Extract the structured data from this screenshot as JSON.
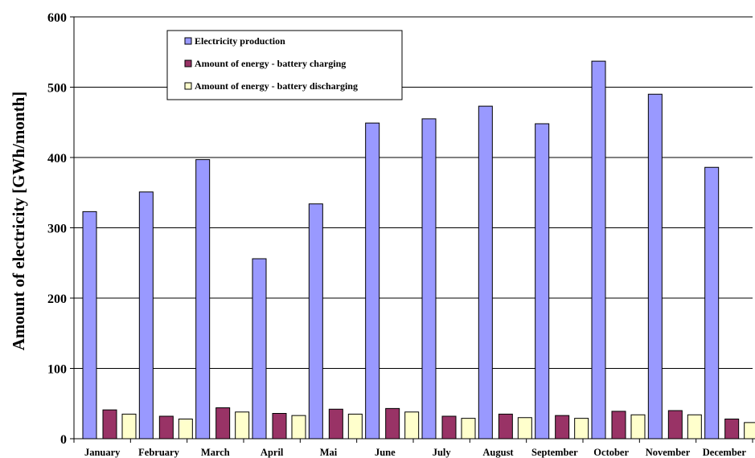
{
  "chart_data": {
    "type": "bar",
    "categories": [
      "January",
      "February",
      "March",
      "April",
      "Mai",
      "June",
      "July",
      "August",
      "September",
      "October",
      "November",
      "December"
    ],
    "series": [
      {
        "name": "Electricity production",
        "color": "#9999ff",
        "values": [
          323,
          351,
          397,
          256,
          334,
          449,
          455,
          473,
          448,
          537,
          490,
          386
        ]
      },
      {
        "name": "Amount of energy - battery charging",
        "color": "#993366",
        "values": [
          41,
          32,
          44,
          36,
          42,
          43,
          32,
          35,
          33,
          39,
          40,
          28
        ]
      },
      {
        "name": "Amount of energy - battery discharging",
        "color": "#ffffcc",
        "values": [
          35,
          28,
          38,
          33,
          35,
          38,
          29,
          30,
          29,
          34,
          34,
          23
        ]
      }
    ],
    "ylabel": "Amount of electricity [GWh/month]",
    "xlabel": "",
    "yticks": [
      0,
      100,
      200,
      300,
      400,
      500,
      600
    ],
    "ylim": [
      0,
      600
    ],
    "grid": true,
    "legend": "top-left (inside plot)"
  }
}
